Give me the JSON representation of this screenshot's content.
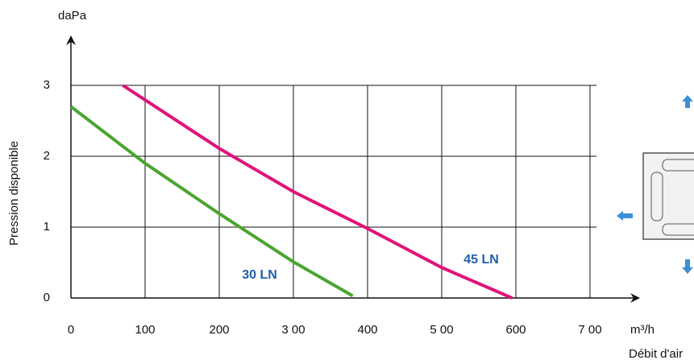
{
  "chart_data": {
    "type": "line",
    "y_label": "daPa",
    "y_title": "Pression disponible",
    "x_label": "m³/h",
    "x_title": "Débit d'air",
    "xlim": [
      0,
      700
    ],
    "ylim": [
      0,
      3
    ],
    "xticks": [
      0,
      100,
      200,
      {
        "value": 300,
        "label": "3 00"
      },
      400,
      {
        "value": 500,
        "label": "5 00"
      },
      600,
      {
        "value": 700,
        "label": "7 00"
      }
    ],
    "yticks": [
      0,
      1,
      2,
      3
    ],
    "grid": true,
    "series": [
      {
        "name": "30 LN",
        "color": "#4aa532",
        "x": [
          0,
          100,
          200,
          300,
          380
        ],
        "values": [
          2.7,
          1.9,
          1.19,
          0.51,
          0.03
        ]
      },
      {
        "name": "45 LN",
        "color": "#e0137a",
        "x": [
          70,
          200,
          300,
          400,
          500,
          595
        ],
        "values": [
          3.0,
          2.11,
          1.5,
          0.98,
          0.43,
          0
        ]
      }
    ]
  }
}
